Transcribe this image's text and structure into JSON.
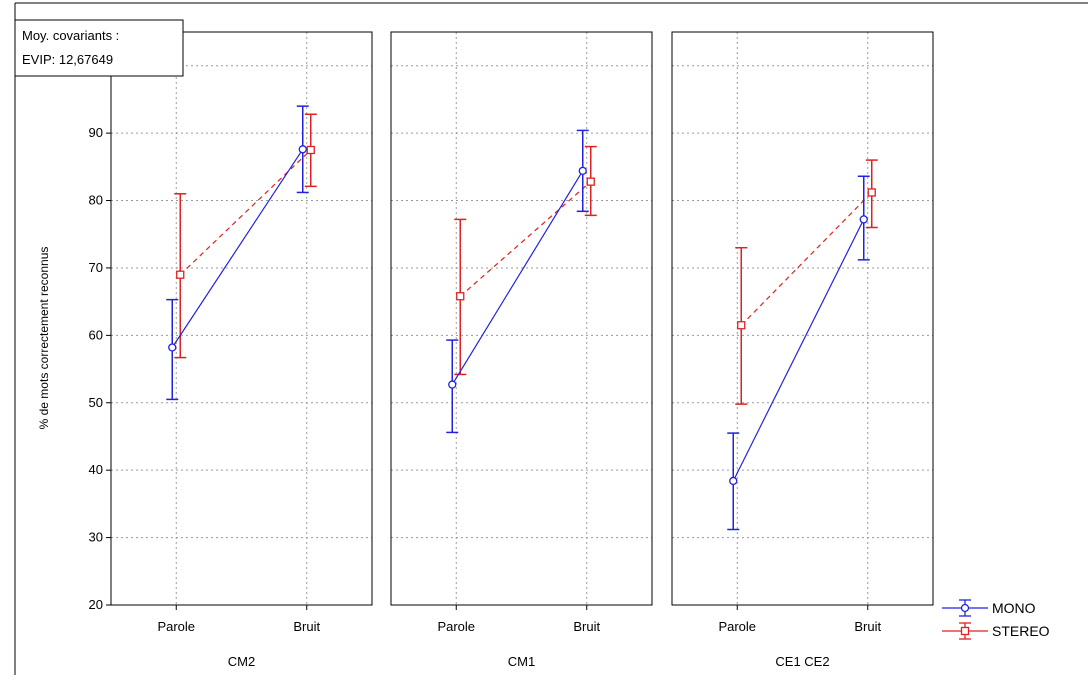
{
  "chart_data": {
    "type": "line",
    "info_box": {
      "line1": "Moy. covariants :",
      "line2": "EVIP: 12,67649"
    },
    "ylabel": "% de mots correctement reconnus",
    "ylim": [
      20,
      105
    ],
    "yticks": [
      20,
      30,
      40,
      50,
      60,
      70,
      80,
      90,
      100
    ],
    "grid": true,
    "legend_position": "bottom-right",
    "colors": {
      "MONO": "#2222dd",
      "STEREO": "#dd2222"
    },
    "categories": [
      "Parole",
      "Bruit"
    ],
    "panels": [
      {
        "label": "CM2",
        "series": [
          {
            "name": "MONO",
            "values": [
              58.2,
              87.6
            ],
            "lower": [
              50.5,
              81.2
            ],
            "upper": [
              65.3,
              94.0
            ]
          },
          {
            "name": "STEREO",
            "values": [
              69.0,
              87.5
            ],
            "lower": [
              56.7,
              82.1
            ],
            "upper": [
              81.0,
              92.8
            ]
          }
        ]
      },
      {
        "label": "CM1",
        "series": [
          {
            "name": "MONO",
            "values": [
              52.7,
              84.4
            ],
            "lower": [
              45.6,
              78.4
            ],
            "upper": [
              59.3,
              90.4
            ]
          },
          {
            "name": "STEREO",
            "values": [
              65.8,
              82.8
            ],
            "lower": [
              54.2,
              77.8
            ],
            "upper": [
              77.2,
              88.0
            ]
          }
        ]
      },
      {
        "label": "CE1 CE2",
        "series": [
          {
            "name": "MONO",
            "values": [
              38.4,
              77.2
            ],
            "lower": [
              31.2,
              71.2
            ],
            "upper": [
              45.5,
              83.6
            ]
          },
          {
            "name": "STEREO",
            "values": [
              61.5,
              81.2
            ],
            "lower": [
              49.8,
              76.0
            ],
            "upper": [
              73.0,
              86.0
            ]
          }
        ]
      }
    ]
  }
}
